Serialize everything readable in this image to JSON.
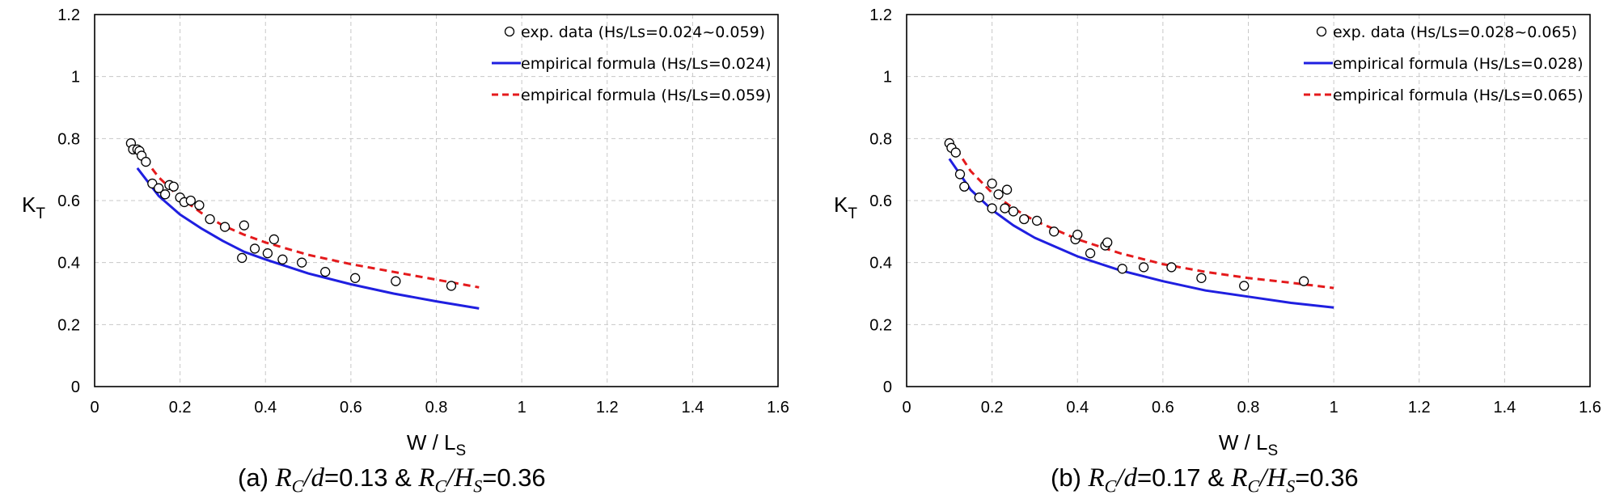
{
  "chart_data": [
    {
      "type": "scatter",
      "caption": {
        "prefix": "(a) ",
        "term1": "R",
        "term1_sub": "C",
        "term1_den": "/d",
        "mid": "=0.13 & ",
        "term2": "R",
        "term2_sub": "C",
        "term2_den": "/H",
        "term2_den_sub": "S",
        "suffix": "=0.36"
      },
      "xlabel": {
        "main": "W / L",
        "sub": "S"
      },
      "ylabel": {
        "main": "K",
        "sub": "T"
      },
      "xlim": [
        0,
        1.6
      ],
      "ylim": [
        0,
        1.2
      ],
      "xticks": [
        "0",
        "0.2",
        "0.4",
        "0.6",
        "0.8",
        "1",
        "1.2",
        "1.4",
        "1.6"
      ],
      "yticks": [
        "0",
        "0.2",
        "0.4",
        "0.6",
        "0.8",
        "1",
        "1.2"
      ],
      "grid": true,
      "legend_position": "top-right",
      "series": [
        {
          "name": "exp. data (Hs/Ls=0.024~0.059)",
          "kind": "markers",
          "color": "#000000",
          "x": [
            0.085,
            0.09,
            0.1,
            0.105,
            0.11,
            0.12,
            0.135,
            0.15,
            0.165,
            0.175,
            0.185,
            0.2,
            0.21,
            0.225,
            0.245,
            0.27,
            0.305,
            0.345,
            0.35,
            0.375,
            0.405,
            0.42,
            0.44,
            0.485,
            0.54,
            0.61,
            0.705,
            0.835
          ],
          "y": [
            0.785,
            0.765,
            0.765,
            0.76,
            0.745,
            0.725,
            0.655,
            0.64,
            0.62,
            0.65,
            0.645,
            0.61,
            0.595,
            0.6,
            0.585,
            0.54,
            0.515,
            0.415,
            0.52,
            0.445,
            0.43,
            0.475,
            0.41,
            0.4,
            0.37,
            0.35,
            0.34,
            0.325
          ]
        },
        {
          "name": "empirical formula (Hs/Ls=0.024)",
          "kind": "line",
          "color": "#1f1fe0",
          "dashed": false,
          "x": [
            0.1,
            0.15,
            0.2,
            0.25,
            0.3,
            0.35,
            0.4,
            0.5,
            0.6,
            0.7,
            0.8,
            0.9
          ],
          "y": [
            0.705,
            0.615,
            0.555,
            0.51,
            0.47,
            0.435,
            0.41,
            0.365,
            0.33,
            0.3,
            0.275,
            0.252
          ]
        },
        {
          "name": "empirical formula (Hs/Ls=0.059)",
          "kind": "line",
          "color": "#e41a1c",
          "dashed": true,
          "x": [
            0.1,
            0.15,
            0.2,
            0.25,
            0.3,
            0.35,
            0.4,
            0.5,
            0.6,
            0.7,
            0.8,
            0.9
          ],
          "y": [
            0.765,
            0.675,
            0.61,
            0.56,
            0.52,
            0.49,
            0.465,
            0.425,
            0.395,
            0.37,
            0.345,
            0.32
          ]
        }
      ]
    },
    {
      "type": "scatter",
      "caption": {
        "prefix": "(b) ",
        "term1": "R",
        "term1_sub": "C",
        "term1_den": "/d",
        "mid": "=0.17 & ",
        "term2": "R",
        "term2_sub": "C",
        "term2_den": "/H",
        "term2_den_sub": "S",
        "suffix": "=0.36"
      },
      "xlabel": {
        "main": "W / L",
        "sub": "S"
      },
      "ylabel": {
        "main": "K",
        "sub": "T"
      },
      "xlim": [
        0,
        1.6
      ],
      "ylim": [
        0,
        1.2
      ],
      "xticks": [
        "0",
        "0.2",
        "0.4",
        "0.6",
        "0.8",
        "1",
        "1.2",
        "1.4",
        "1.6"
      ],
      "yticks": [
        "0",
        "0.2",
        "0.4",
        "0.6",
        "0.8",
        "1",
        "1.2"
      ],
      "grid": true,
      "legend_position": "top-right",
      "series": [
        {
          "name": "exp. data (Hs/Ls=0.028~0.065)",
          "kind": "markers",
          "color": "#000000",
          "x": [
            0.1,
            0.105,
            0.115,
            0.125,
            0.135,
            0.17,
            0.2,
            0.2,
            0.215,
            0.23,
            0.235,
            0.25,
            0.275,
            0.305,
            0.345,
            0.395,
            0.4,
            0.43,
            0.465,
            0.47,
            0.505,
            0.555,
            0.62,
            0.69,
            0.79,
            0.93
          ],
          "y": [
            0.785,
            0.77,
            0.755,
            0.685,
            0.645,
            0.61,
            0.575,
            0.655,
            0.62,
            0.575,
            0.635,
            0.565,
            0.54,
            0.535,
            0.5,
            0.475,
            0.49,
            0.43,
            0.455,
            0.465,
            0.38,
            0.385,
            0.385,
            0.35,
            0.325,
            0.34
          ]
        },
        {
          "name": "empirical formula (Hs/Ls=0.028)",
          "kind": "line",
          "color": "#1f1fe0",
          "dashed": false,
          "x": [
            0.1,
            0.15,
            0.2,
            0.25,
            0.3,
            0.35,
            0.4,
            0.5,
            0.6,
            0.7,
            0.8,
            0.9,
            1.0
          ],
          "y": [
            0.735,
            0.635,
            0.57,
            0.52,
            0.48,
            0.45,
            0.42,
            0.375,
            0.34,
            0.31,
            0.29,
            0.27,
            0.255
          ]
        },
        {
          "name": "empirical formula (Hs/Ls=0.065)",
          "kind": "line",
          "color": "#e41a1c",
          "dashed": true,
          "x": [
            0.1,
            0.15,
            0.2,
            0.25,
            0.3,
            0.35,
            0.4,
            0.5,
            0.6,
            0.7,
            0.8,
            0.9,
            1.0
          ],
          "y": [
            0.8,
            0.695,
            0.625,
            0.575,
            0.535,
            0.505,
            0.475,
            0.43,
            0.395,
            0.37,
            0.35,
            0.335,
            0.318
          ]
        }
      ]
    }
  ]
}
